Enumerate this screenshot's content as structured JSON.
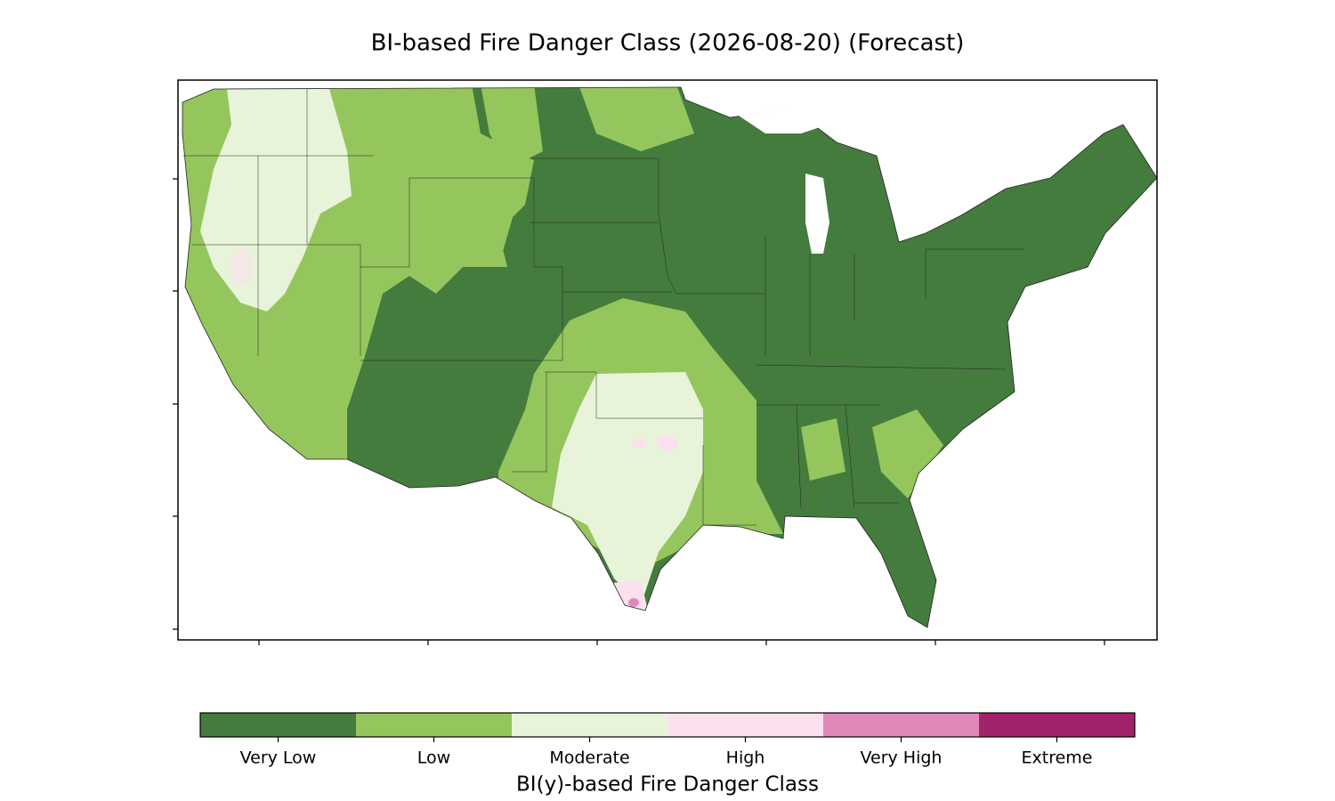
{
  "title": "BI-based Fire Danger Class (2026-08-20) (Forecast)",
  "colorbar": {
    "label": "BI(y)-based Fire Danger Class",
    "classes": [
      {
        "name": "Very Low",
        "color": "#447c3d"
      },
      {
        "name": "Low",
        "color": "#95c65d"
      },
      {
        "name": "Moderate",
        "color": "#e8f4da"
      },
      {
        "name": "High",
        "color": "#fbe0ee"
      },
      {
        "name": "Very High",
        "color": "#e188b8"
      },
      {
        "name": "Extreme",
        "color": "#a2236c"
      }
    ]
  }
}
